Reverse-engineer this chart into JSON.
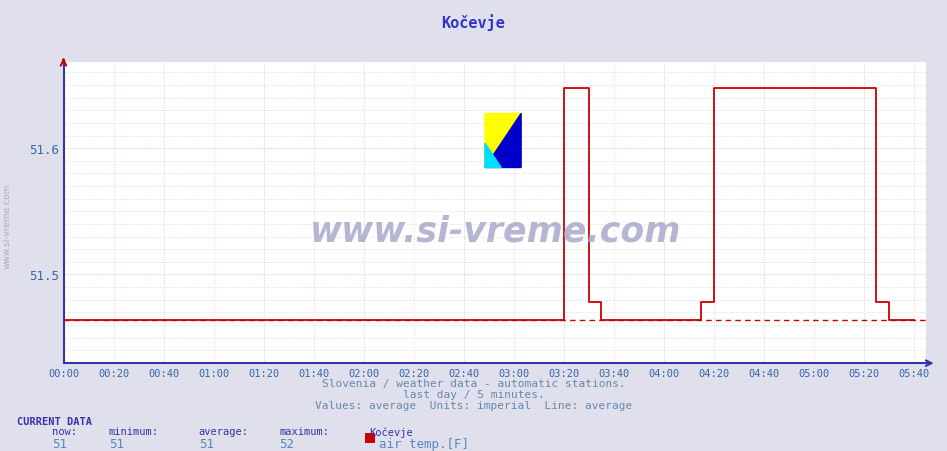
{
  "title": "Kočevje",
  "title_color": "#3333cc",
  "bg_color": "#e0e0ec",
  "plot_bg_color": "#ffffff",
  "grid_color": "#ccccdd",
  "red_grid_color": "#ffcccc",
  "line_color": "#cc0000",
  "axis_color": "#3333aa",
  "tick_color": "#3366aa",
  "avg_line_y": 51.464,
  "avg_line_color": "#cc0000",
  "time_labels": [
    "00:00",
    "00:20",
    "00:40",
    "01:00",
    "01:20",
    "01:40",
    "02:00",
    "02:20",
    "02:40",
    "03:00",
    "03:20",
    "03:40",
    "04:00",
    "04:20",
    "04:40",
    "05:00",
    "05:20",
    "05:40"
  ],
  "ylabel_ticks": [
    51.5,
    51.6
  ],
  "ymin": 51.43,
  "ymax": 51.668,
  "subtitle1": "Slovenia / weather data - automatic stations.",
  "subtitle2": "last day / 5 minutes.",
  "subtitle3": "Values: average  Units: imperial  Line: average",
  "subtitle_color": "#6688aa",
  "watermark_text": "www.si-vreme.com",
  "watermark_color": "#aaaacc",
  "current_data_label": "CURRENT DATA",
  "now_val": "51",
  "min_val": "51",
  "avg_val": "51",
  "max_val": "52",
  "station_label": "Kočevje",
  "series_label": "air temp.[F]",
  "legend_color": "#cc0000",
  "bottom_text_color": "#5588bb",
  "sidebar_text": "www.si-vreme.com",
  "sidebar_color": "#aaaacc",
  "base_val": 51.464,
  "high_val": 51.648,
  "mid_val": 51.478
}
